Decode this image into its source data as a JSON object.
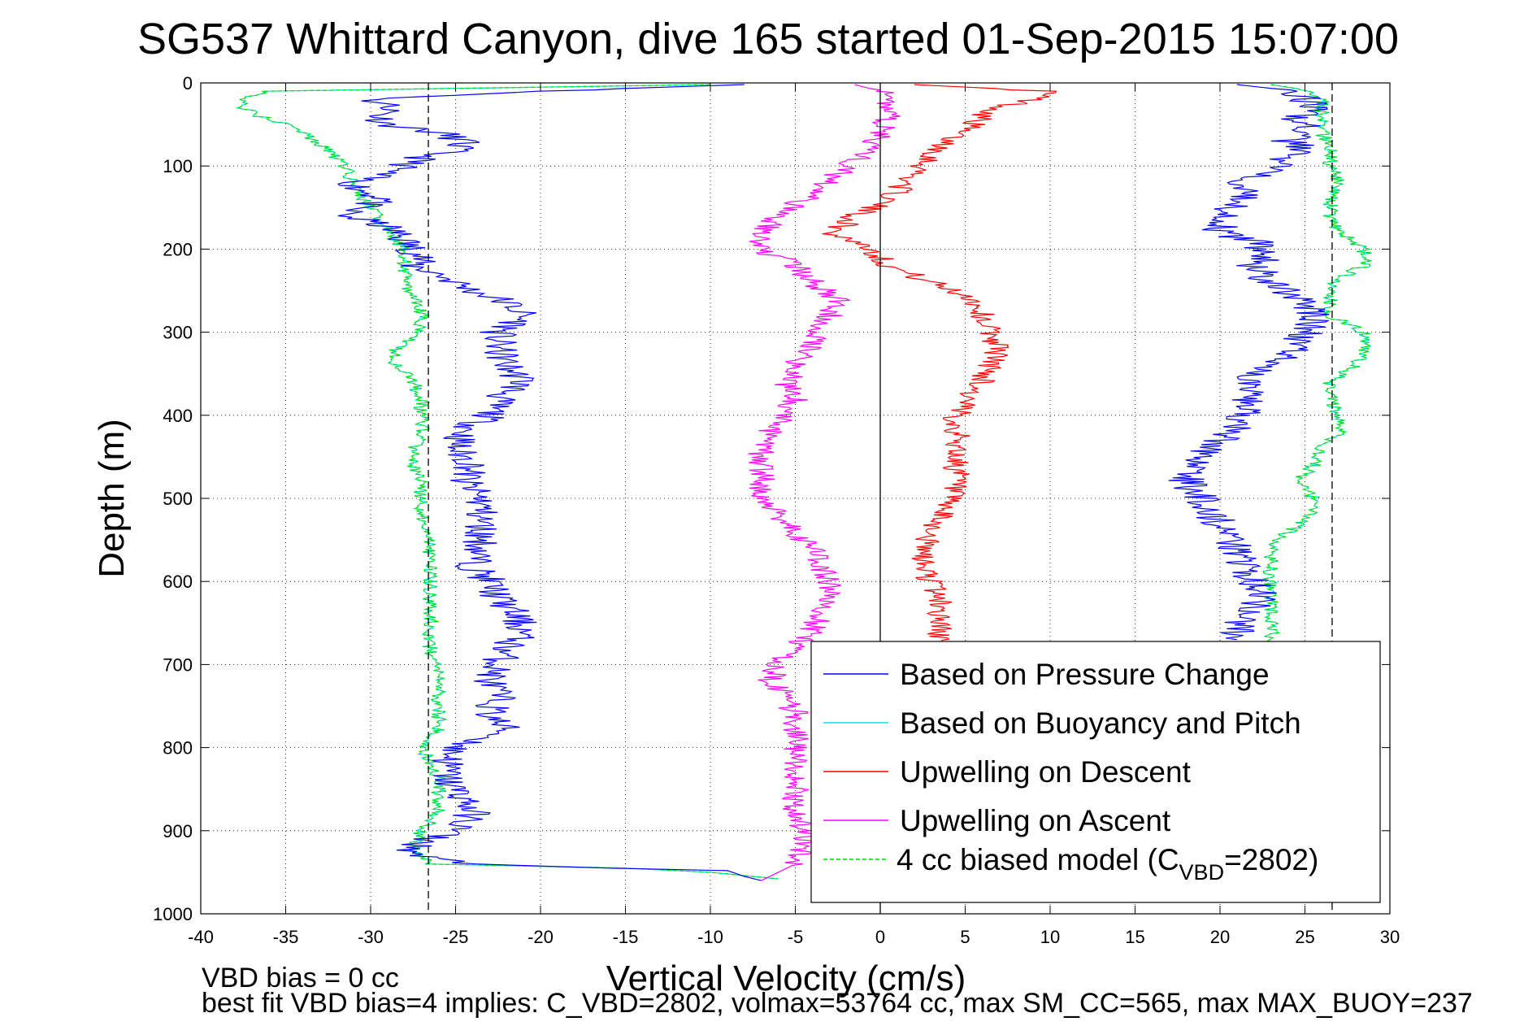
{
  "chart_data": {
    "type": "line",
    "title": "SG537 Whittard Canyon, dive 165 started 01-Sep-2015 15:07:00",
    "xlabel": "Vertical Velocity (cm/s)",
    "ylabel": "Depth (m)",
    "xlim": [
      -40,
      30
    ],
    "ylim": [
      0,
      1000
    ],
    "y_reversed": true,
    "grid": true,
    "xticks": [
      -40,
      -35,
      -30,
      -25,
      -20,
      -15,
      -10,
      -5,
      0,
      5,
      10,
      15,
      20,
      25,
      30
    ],
    "yticks": [
      0,
      100,
      200,
      300,
      400,
      500,
      600,
      700,
      800,
      900,
      1000
    ],
    "reference_lines": [
      {
        "x": -26.6,
        "style": "dashed",
        "color": "#000000"
      },
      {
        "x": 26.6,
        "style": "dashed",
        "color": "#000000"
      },
      {
        "x": 0,
        "style": "solid",
        "color": "#000000"
      }
    ],
    "legend_position": "bottom-right",
    "footer_lines": [
      "VBD bias = 0 cc",
      "best fit VBD bias=4 implies: C_VBD=2802, volmax=53764 cc, max SM_CC=565, max MAX_BUOY=237"
    ],
    "series": [
      {
        "name": "Based on Pressure Change",
        "color": "#0000ff",
        "style": "solid",
        "segments": [
          {
            "depth": [
              2,
              10,
              20,
              30,
              40,
              50,
              60,
              70,
              80,
              90,
              100,
              110,
              120,
              130,
              140,
              150,
              160,
              170,
              180,
              190,
              200,
              210,
              220,
              230,
              240,
              250,
              260,
              270,
              280,
              290,
              300,
              320,
              340,
              360,
              380,
              400,
              420,
              440,
              460,
              480,
              500,
              520,
              540,
              560,
              580,
              600,
              620,
              640,
              660,
              680,
              700,
              720,
              740,
              760,
              780,
              800,
              820,
              840,
              860,
              880,
              900,
              910,
              920,
              930,
              940,
              945,
              948,
              955,
              960
            ],
            "x": [
              -8,
              -20,
              -30,
              -28.5,
              -29.5,
              -29,
              -26,
              -24.5,
              -25,
              -27,
              -28,
              -29.5,
              -31,
              -30.5,
              -29,
              -31,
              -31.5,
              -29.5,
              -28.5,
              -28,
              -27.5,
              -27,
              -27.5,
              -26,
              -25,
              -24,
              -22.5,
              -21.5,
              -21,
              -21.5,
              -22.5,
              -22.5,
              -22,
              -21,
              -22.5,
              -23,
              -24.5,
              -25,
              -24,
              -24.5,
              -23.5,
              -23.5,
              -23.5,
              -23.5,
              -24,
              -23,
              -22.5,
              -21.5,
              -21,
              -22,
              -22.5,
              -23,
              -22.5,
              -23,
              -22,
              -25,
              -25.5,
              -25.5,
              -24.5,
              -24,
              -25,
              -26.5,
              -27.5,
              -27.5,
              -24,
              -16,
              -9,
              -8,
              -7
            ]
          },
          {
            "depth": [
              2,
              10,
              20,
              30,
              40,
              50,
              60,
              70,
              80,
              90,
              100,
              110,
              120,
              130,
              140,
              150,
              160,
              170,
              180,
              190,
              200,
              210,
              220,
              240,
              260,
              280,
              300,
              320,
              340,
              360,
              380,
              400,
              420,
              440,
              460,
              480,
              500,
              520,
              540,
              560,
              580,
              600,
              620,
              640,
              660,
              670
            ],
            "x": [
              21,
              24.5,
              25,
              25.5,
              24.5,
              25,
              24.5,
              24,
              25,
              23.5,
              23.5,
              22.5,
              21.5,
              22,
              21.5,
              20.5,
              20.5,
              20,
              20,
              22,
              22.5,
              23,
              22,
              23,
              24.5,
              25.5,
              25,
              24.5,
              23,
              21.5,
              21.5,
              21.5,
              20.5,
              19.5,
              18.5,
              18,
              19,
              19.5,
              20.5,
              21,
              21.5,
              22,
              22.5,
              21.5,
              21,
              21
            ]
          }
        ]
      },
      {
        "name": "Based on Buoyancy and Pitch",
        "color": "#00e5e5",
        "style": "solid",
        "segments": [
          {
            "depth": [
              2,
              10,
              20,
              30,
              40,
              50,
              60,
              80,
              100,
              120,
              140,
              160,
              180,
              200,
              220,
              240,
              260,
              280,
              300,
              320,
              340,
              360,
              380,
              400,
              420,
              440,
              460,
              480,
              500,
              520,
              540,
              560,
              580,
              600,
              640,
              680,
              720,
              760,
              780,
              800,
              820,
              840,
              860,
              880,
              900,
              920,
              930,
              940,
              945,
              950,
              958
            ],
            "x": [
              -10,
              -36,
              -37.5,
              -37.5,
              -36.5,
              -35,
              -34,
              -32.5,
              -31.5,
              -31,
              -30.5,
              -29.5,
              -29,
              -28,
              -28,
              -28,
              -27.5,
              -27,
              -27,
              -28.5,
              -28.5,
              -27.5,
              -27,
              -27,
              -27,
              -27.5,
              -27.5,
              -27,
              -27,
              -27,
              -26.5,
              -26.5,
              -26.5,
              -26.5,
              -26.5,
              -26.5,
              -26,
              -26,
              -26,
              -27,
              -26.5,
              -26,
              -26,
              -26,
              -27,
              -27.5,
              -27,
              -26.5,
              -15,
              -10,
              -6
            ]
          },
          {
            "depth": [
              2,
              10,
              20,
              40,
              60,
              80,
              100,
              120,
              140,
              160,
              180,
              200,
              220,
              240,
              260,
              280,
              300,
              320,
              340,
              360,
              380,
              400,
              420,
              440,
              460,
              480,
              500,
              520,
              540,
              560,
              580,
              600,
              620,
              640,
              660,
              680
            ],
            "x": [
              23,
              25.5,
              26,
              26,
              26,
              26.5,
              26.5,
              27,
              26.5,
              26.5,
              27,
              28.5,
              28.5,
              26.5,
              26.5,
              26.5,
              28.5,
              28.5,
              28,
              26.5,
              26.5,
              27,
              27,
              26,
              25.5,
              24.5,
              25.5,
              25.5,
              24,
              23,
              23,
              23,
              23,
              23,
              23,
              23
            ]
          }
        ]
      },
      {
        "name": "Upwelling on Descent",
        "color": "#ff0000",
        "style": "solid",
        "segments": [
          {
            "depth": [
              2,
              10,
              20,
              30,
              40,
              50,
              60,
              70,
              80,
              90,
              100,
              110,
              120,
              130,
              140,
              150,
              160,
              170,
              180,
              190,
              200,
              210,
              220,
              240,
              260,
              280,
              300,
              320,
              340,
              360,
              380,
              400,
              420,
              440,
              460,
              480,
              500,
              520,
              540,
              560,
              580,
              600,
              620,
              640,
              660,
              680
            ],
            "x": [
              2,
              10,
              9,
              7,
              6,
              5.5,
              4.5,
              4,
              3.5,
              3,
              2.5,
              2,
              1.5,
              1,
              0.5,
              -0.5,
              -1.5,
              -2,
              -3,
              -1.5,
              -0.5,
              0,
              0.5,
              3,
              5.5,
              6,
              6.5,
              7,
              6.5,
              6,
              5,
              4.5,
              4.5,
              4.5,
              4.5,
              4.5,
              4,
              3.5,
              3,
              2.5,
              2.5,
              3,
              3.5,
              3.5,
              3.5,
              3.5
            ]
          }
        ]
      },
      {
        "name": "Upwelling on Ascent",
        "color": "#ff00ff",
        "style": "solid",
        "segments": [
          {
            "depth": [
              2,
              10,
              20,
              40,
              60,
              80,
              100,
              120,
              140,
              160,
              180,
              200,
              220,
              240,
              260,
              280,
              300,
              320,
              340,
              360,
              380,
              400,
              420,
              440,
              460,
              480,
              500,
              520,
              540,
              560,
              580,
              600,
              620,
              640,
              660,
              680,
              700,
              720,
              740,
              760,
              780,
              800,
              820,
              840,
              860,
              880,
              900,
              920,
              940,
              950,
              960
            ],
            "x": [
              -1.5,
              0,
              0.5,
              0.5,
              0,
              -0.5,
              -2,
              -3,
              -4.5,
              -6,
              -7,
              -7,
              -5,
              -4,
              -2.5,
              -3,
              -3.5,
              -4,
              -5,
              -5.5,
              -5,
              -5.5,
              -6.5,
              -7,
              -7,
              -7,
              -7,
              -6,
              -5,
              -4,
              -3.5,
              -3,
              -3,
              -3.5,
              -4,
              -5,
              -6,
              -6.5,
              -5.5,
              -5,
              -5,
              -5,
              -5,
              -5,
              -5,
              -5,
              -4.5,
              -4.5,
              -5,
              -6,
              -7
            ]
          }
        ]
      },
      {
        "name": "4 cc biased model (C_VBD=2802)",
        "legend_main": "4 cc biased model (C",
        "legend_sub": "VBD",
        "legend_tail": "=2802)",
        "color": "#00dd00",
        "style": "dashed",
        "segments": [
          {
            "depth": [
              2,
              10,
              20,
              30,
              40,
              50,
              60,
              80,
              100,
              120,
              140,
              160,
              180,
              200,
              220,
              240,
              260,
              280,
              300,
              320,
              340,
              360,
              380,
              400,
              420,
              440,
              460,
              480,
              500,
              520,
              540,
              560,
              580,
              600,
              640,
              680,
              720,
              760,
              780,
              800,
              820,
              840,
              860,
              880,
              900,
              920,
              930,
              940,
              945,
              950,
              958
            ],
            "x": [
              -10,
              -36,
              -37.5,
              -37.5,
              -36.5,
              -35,
              -34,
              -32.5,
              -31.5,
              -31,
              -30.5,
              -29.5,
              -29,
              -28,
              -28,
              -28,
              -27.5,
              -27,
              -27,
              -28.5,
              -28.5,
              -27.5,
              -27,
              -27,
              -27,
              -27.5,
              -27.5,
              -27,
              -27,
              -27,
              -26.5,
              -26.5,
              -26.5,
              -26.5,
              -26.5,
              -26.5,
              -26,
              -26,
              -26,
              -27,
              -26.5,
              -26,
              -26,
              -26,
              -27,
              -27.5,
              -27,
              -26.5,
              -15,
              -10,
              -6
            ]
          },
          {
            "depth": [
              2,
              10,
              20,
              40,
              60,
              80,
              100,
              120,
              140,
              160,
              180,
              200,
              220,
              240,
              260,
              280,
              300,
              320,
              340,
              360,
              380,
              400,
              420,
              440,
              460,
              480,
              500,
              520,
              540,
              560,
              580,
              600,
              620,
              640,
              660,
              680
            ],
            "x": [
              23,
              25.5,
              26,
              26,
              26,
              26.5,
              26.5,
              27,
              26.5,
              26.5,
              27,
              28.5,
              28.5,
              26.5,
              26.5,
              26.5,
              28.5,
              28.5,
              28,
              26.5,
              26.5,
              27,
              27,
              26,
              25.5,
              24.5,
              25.5,
              25.5,
              24,
              23,
              23,
              23,
              23,
              23,
              23,
              23
            ]
          }
        ]
      }
    ]
  }
}
